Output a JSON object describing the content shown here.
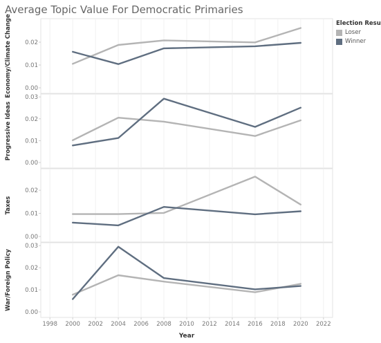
{
  "title": "Average Topic Value For Democratic Primaries",
  "legend": {
    "title": "Election Result",
    "items": [
      {
        "label": "Loser",
        "color": "#b4b4b4"
      },
      {
        "label": "Winner",
        "color": "#5f6e80"
      }
    ]
  },
  "chart_data": {
    "type": "line",
    "xlabel": "Year",
    "x_ticks": [
      "1998",
      "2000",
      "2002",
      "2004",
      "2006",
      "2008",
      "2010",
      "2012",
      "2014",
      "2016",
      "2018",
      "2020",
      "2022"
    ],
    "xlim": [
      1997.2,
      2022.8
    ],
    "x": [
      2000,
      2004,
      2008,
      2016,
      2020
    ],
    "panels": [
      {
        "ylabel": "Economy/Climate Change",
        "ylim": [
          0,
          0.03
        ],
        "y_ticks": [
          "0.00",
          "0.01",
          "0.02"
        ],
        "series": [
          {
            "name": "Loser",
            "values": [
              0.0105,
              0.0188,
              0.0208,
              0.0199,
              0.0262
            ]
          },
          {
            "name": "Winner",
            "values": [
              0.0158,
              0.0104,
              0.0173,
              0.0182,
              0.0197
            ]
          }
        ]
      },
      {
        "ylabel": "Progressive Ideas",
        "ylim": [
          0,
          0.031
        ],
        "y_ticks": [
          "0.00",
          "0.01",
          "0.02",
          "0.03"
        ],
        "series": [
          {
            "name": "Loser",
            "values": [
              0.0102,
              0.0205,
              0.0187,
              0.0121,
              0.0193
            ]
          },
          {
            "name": "Winner",
            "values": [
              0.0078,
              0.0112,
              0.0292,
              0.0163,
              0.0251
            ]
          }
        ]
      },
      {
        "ylabel": "Taxes",
        "ylim": [
          0,
          0.029
        ],
        "y_ticks": [
          "0.00",
          "0.01",
          "0.02"
        ],
        "series": [
          {
            "name": "Loser",
            "values": [
              0.0097,
              0.0097,
              0.0102,
              0.0259,
              0.0138
            ]
          },
          {
            "name": "Winner",
            "values": [
              0.006,
              0.0048,
              0.0128,
              0.0096,
              0.0109
            ]
          }
        ]
      },
      {
        "ylabel": "War/Foreign Policy",
        "ylim": [
          0,
          0.031
        ],
        "y_ticks": [
          "0.00",
          "0.01",
          "0.02",
          "0.03"
        ],
        "series": [
          {
            "name": "Loser",
            "values": [
              0.0078,
              0.0166,
              0.0137,
              0.0089,
              0.0127
            ]
          },
          {
            "name": "Winner",
            "values": [
              0.0058,
              0.0295,
              0.0153,
              0.0102,
              0.0117
            ]
          }
        ]
      }
    ]
  }
}
